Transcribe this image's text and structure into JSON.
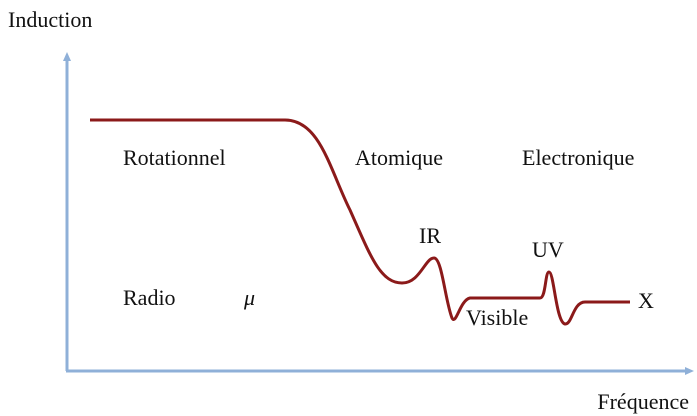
{
  "axes": {
    "y_label": "Induction",
    "x_label": "Fréquence"
  },
  "labels": [
    "Rotationnel",
    "Atomique",
    "Electronique",
    "IR",
    "UV",
    "Radio",
    "μ",
    "Visible",
    "X"
  ]
}
